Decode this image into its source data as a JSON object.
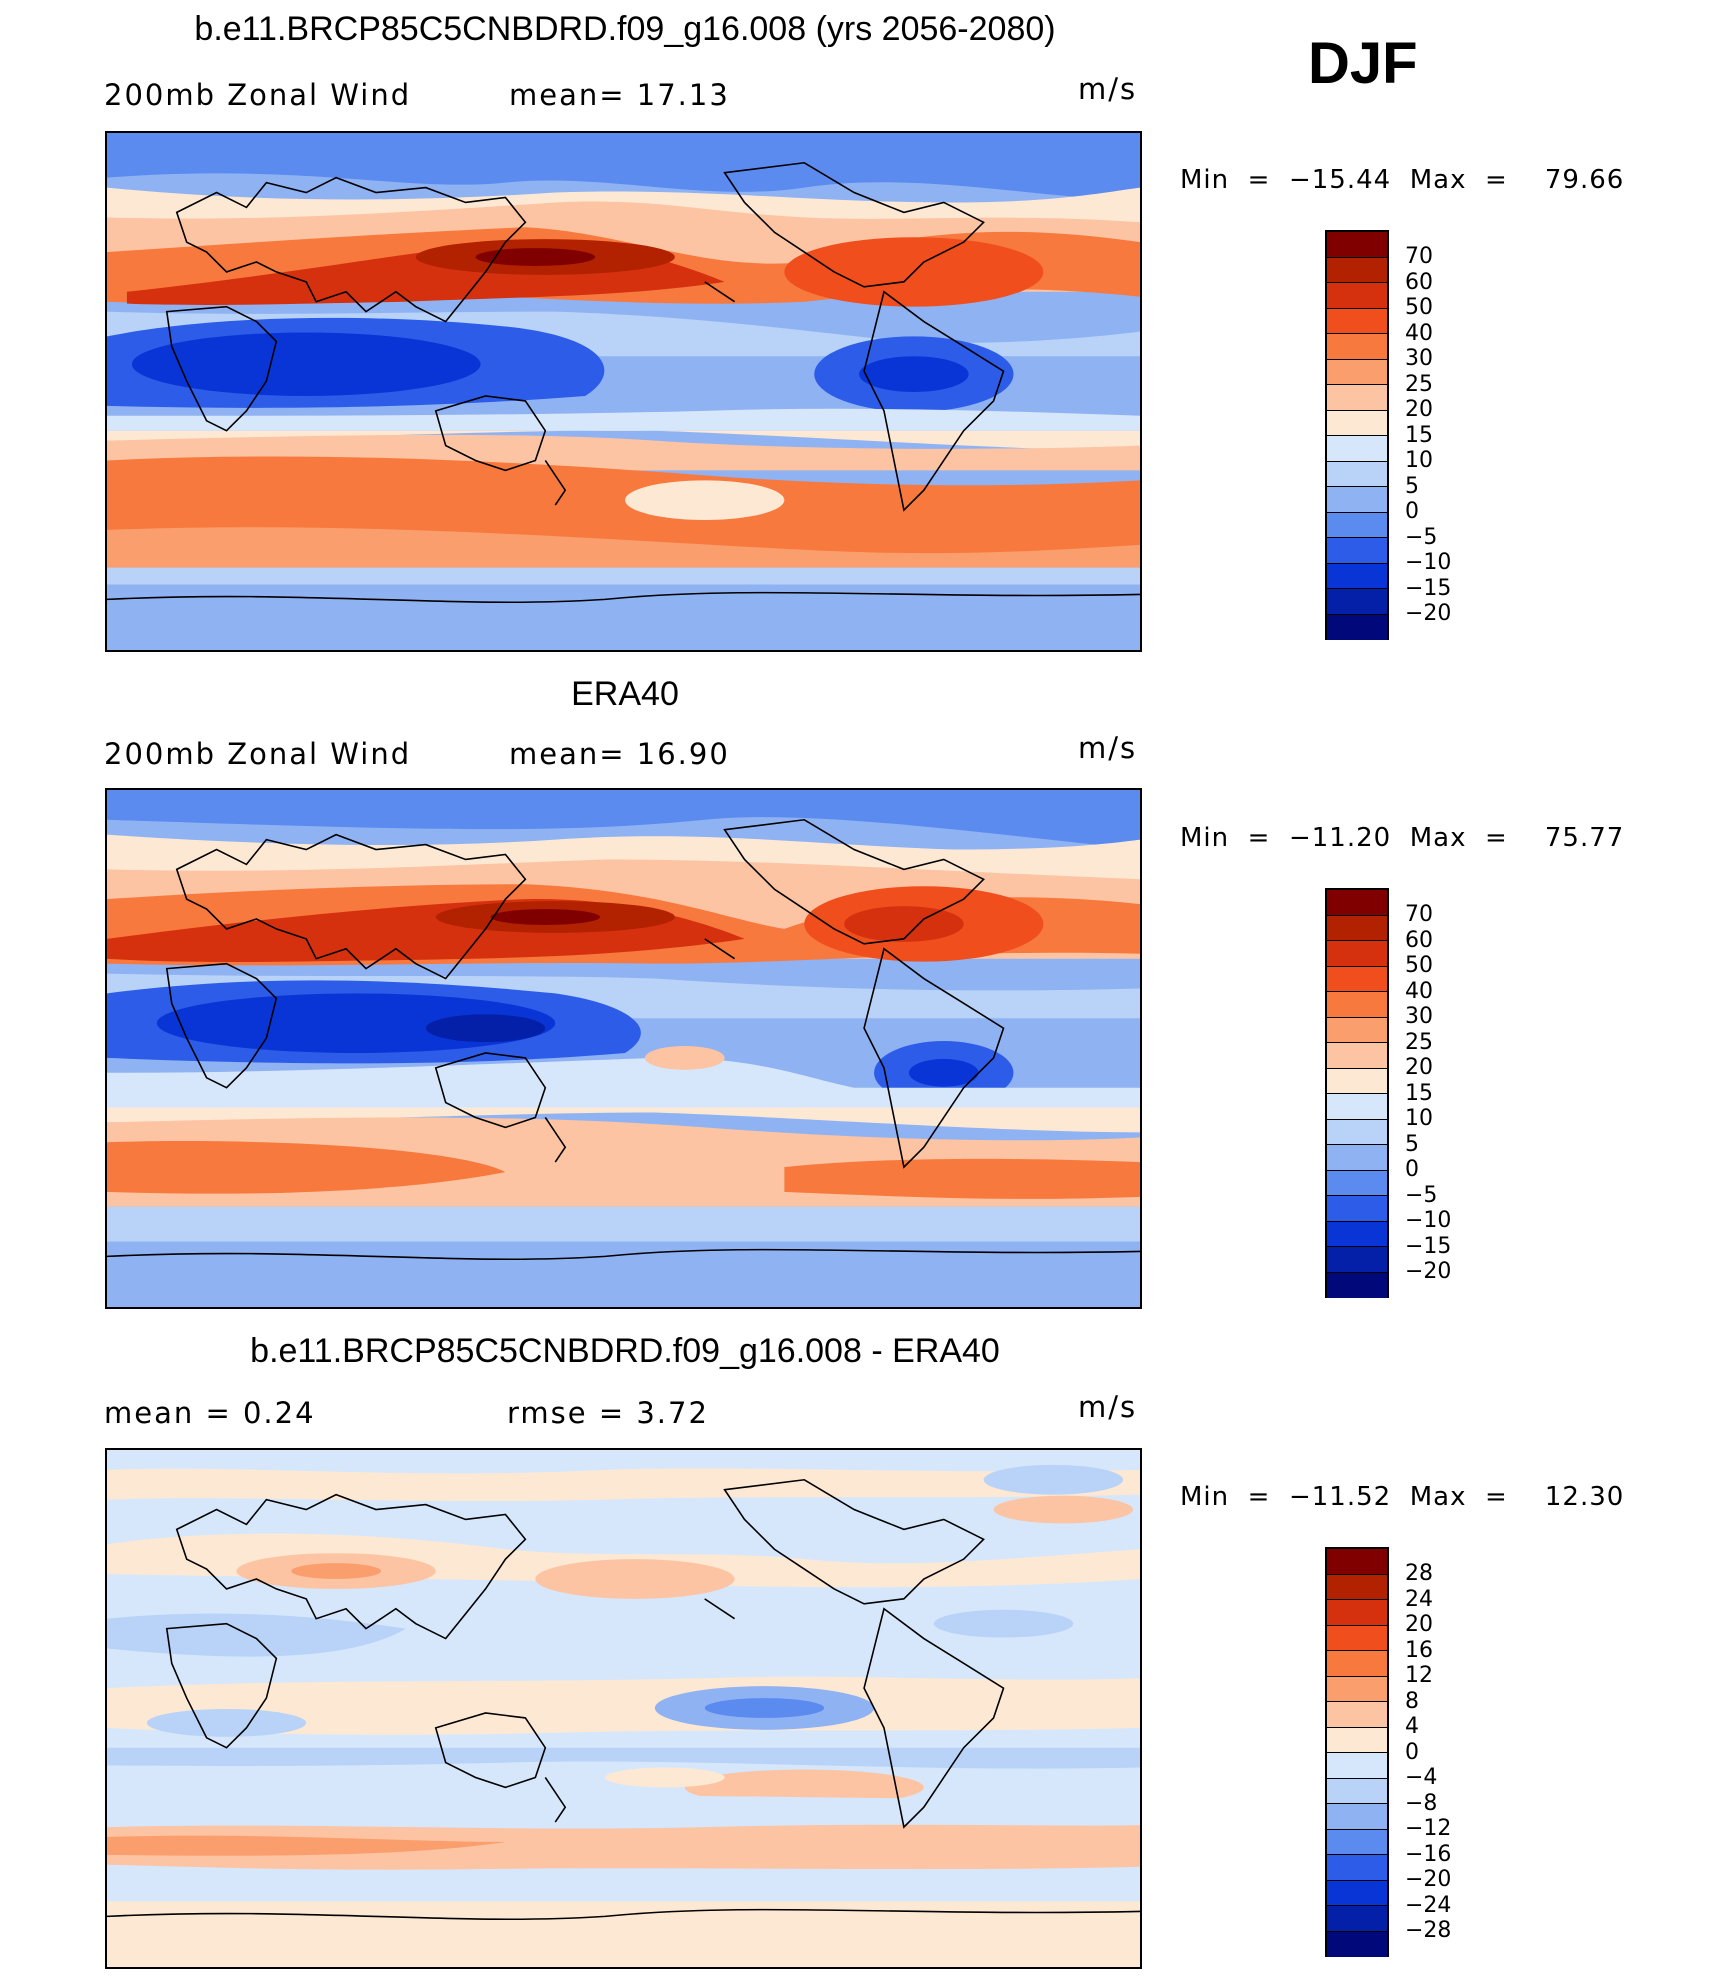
{
  "season": "DJF",
  "panels": [
    {
      "title": "b.e11.BRCP85C5CNBDRD.f09_g16.008 (yrs 2056-2080)",
      "left_label": "200mb  Zonal  Wind",
      "stat_label": "mean=   17.13",
      "units": "m/s",
      "min_label": "Min",
      "min_value": "−15.44",
      "max_label": "Max",
      "max_value": "79.66",
      "colorbar_ticks": [
        "70",
        "60",
        "50",
        "40",
        "30",
        "25",
        "20",
        "15",
        "10",
        "5",
        "0",
        "−5",
        "−10",
        "−15",
        "−20"
      ]
    },
    {
      "title": "ERA40",
      "left_label": "200mb  Zonal  Wind",
      "stat_label": "mean=   16.90",
      "units": "m/s",
      "min_label": "Min",
      "min_value": "−11.20",
      "max_label": "Max",
      "max_value": "75.77",
      "colorbar_ticks": [
        "70",
        "60",
        "50",
        "40",
        "30",
        "25",
        "20",
        "15",
        "10",
        "5",
        "0",
        "−5",
        "−10",
        "−15",
        "−20"
      ]
    },
    {
      "title": "b.e11.BRCP85C5CNBDRD.f09_g16.008 - ERA40",
      "left_label": "mean  =     0.24",
      "stat_label": "rmse  =     3.72",
      "units": "m/s",
      "min_label": "Min",
      "min_value": "−11.52",
      "max_label": "Max",
      "max_value": "12.30",
      "colorbar_ticks": [
        "28",
        "24",
        "20",
        "16",
        "12",
        "8",
        "4",
        "0",
        "−4",
        "−8",
        "−12",
        "−16",
        "−20",
        "−24",
        "−28"
      ]
    }
  ],
  "colors": {
    "abs_scale": [
      "#800000",
      "#b22200",
      "#d6310f",
      "#f04e1d",
      "#f7793e",
      "#fb9e6e",
      "#fcc4a3",
      "#fde8d4",
      "#d6e7fb",
      "#b8d3f7",
      "#8fb2f3",
      "#5c8bf0",
      "#2d5de8",
      "#0a35d6",
      "#0520a8",
      "#00087a"
    ],
    "diff_scale": [
      "#800000",
      "#b22200",
      "#d6310f",
      "#f04e1d",
      "#f7793e",
      "#fb9e6e",
      "#fcc4a3",
      "#fde8d4",
      "#d6e7fb",
      "#b8d3f7",
      "#8fb2f3",
      "#5c8bf0",
      "#2d5de8",
      "#0a35d6",
      "#0520a8",
      "#00087a"
    ]
  }
}
